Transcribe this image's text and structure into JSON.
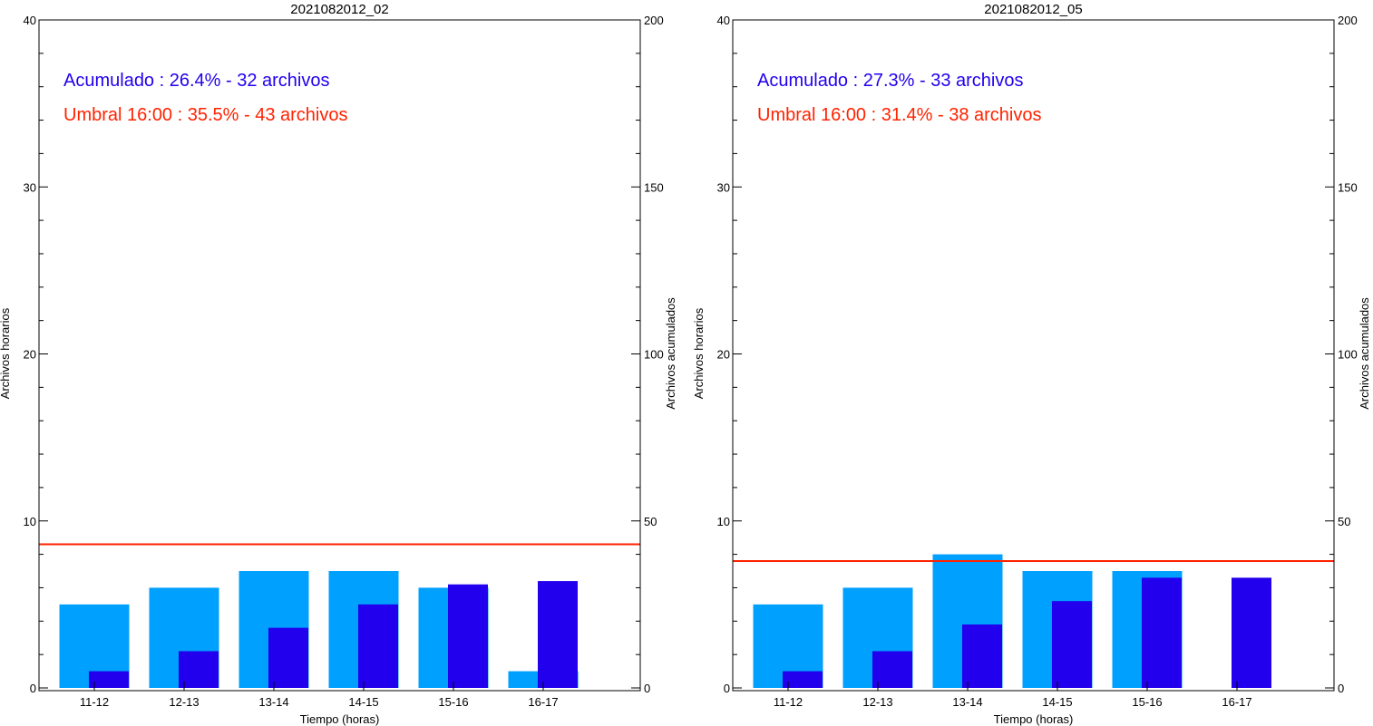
{
  "colors": {
    "hourly_bar": "#00a0ff",
    "cumulative_bar": "#2200ee",
    "threshold_line": "#ff2200",
    "accumulated_text": "#2200ee",
    "threshold_text": "#ff2200",
    "axis": "#000000"
  },
  "chart_data": [
    {
      "type": "bar",
      "title": "2021082012_02",
      "categories": [
        "11-12",
        "12-13",
        "13-14",
        "14-15",
        "15-16",
        "16-17"
      ],
      "xlabel": "Tiempo (horas)",
      "ylabel_left": "Archivos horarios",
      "ylabel_right": "Archivos acumulados",
      "ylim_left": [
        0,
        40
      ],
      "ylim_right": [
        0,
        200
      ],
      "yticks_left": [
        "0",
        "10",
        "20",
        "30",
        "40"
      ],
      "yticks_right": [
        "0",
        "50",
        "100",
        "150",
        "200"
      ],
      "series": [
        {
          "axis": "left",
          "values": [
            5,
            6,
            7,
            7,
            6,
            1
          ]
        },
        {
          "axis": "right",
          "values": [
            5,
            11,
            18,
            25,
            31,
            32
          ]
        }
      ],
      "threshold_right": 43,
      "annotations": {
        "accumulated": "Acumulado : 26.4% - 32 archivos",
        "threshold": "Umbral 16:00 : 35.5% - 43 archivos"
      },
      "grid": false
    },
    {
      "type": "bar",
      "title": "2021082012_05",
      "categories": [
        "11-12",
        "12-13",
        "13-14",
        "14-15",
        "15-16",
        "16-17"
      ],
      "xlabel": "Tiempo (horas)",
      "ylabel_left": "Archivos horarios",
      "ylabel_right": "Archivos acumulados",
      "ylim_left": [
        0,
        40
      ],
      "ylim_right": [
        0,
        200
      ],
      "yticks_left": [
        "0",
        "10",
        "20",
        "30",
        "40"
      ],
      "yticks_right": [
        "0",
        "50",
        "100",
        "150",
        "200"
      ],
      "series": [
        {
          "axis": "left",
          "values": [
            5,
            6,
            8,
            7,
            7,
            0
          ]
        },
        {
          "axis": "right",
          "values": [
            5,
            11,
            19,
            26,
            33,
            33
          ]
        }
      ],
      "threshold_right": 38,
      "annotations": {
        "accumulated": "Acumulado : 27.3% - 33 archivos",
        "threshold": "Umbral 16:00 : 31.4% - 38 archivos"
      },
      "grid": false
    }
  ]
}
